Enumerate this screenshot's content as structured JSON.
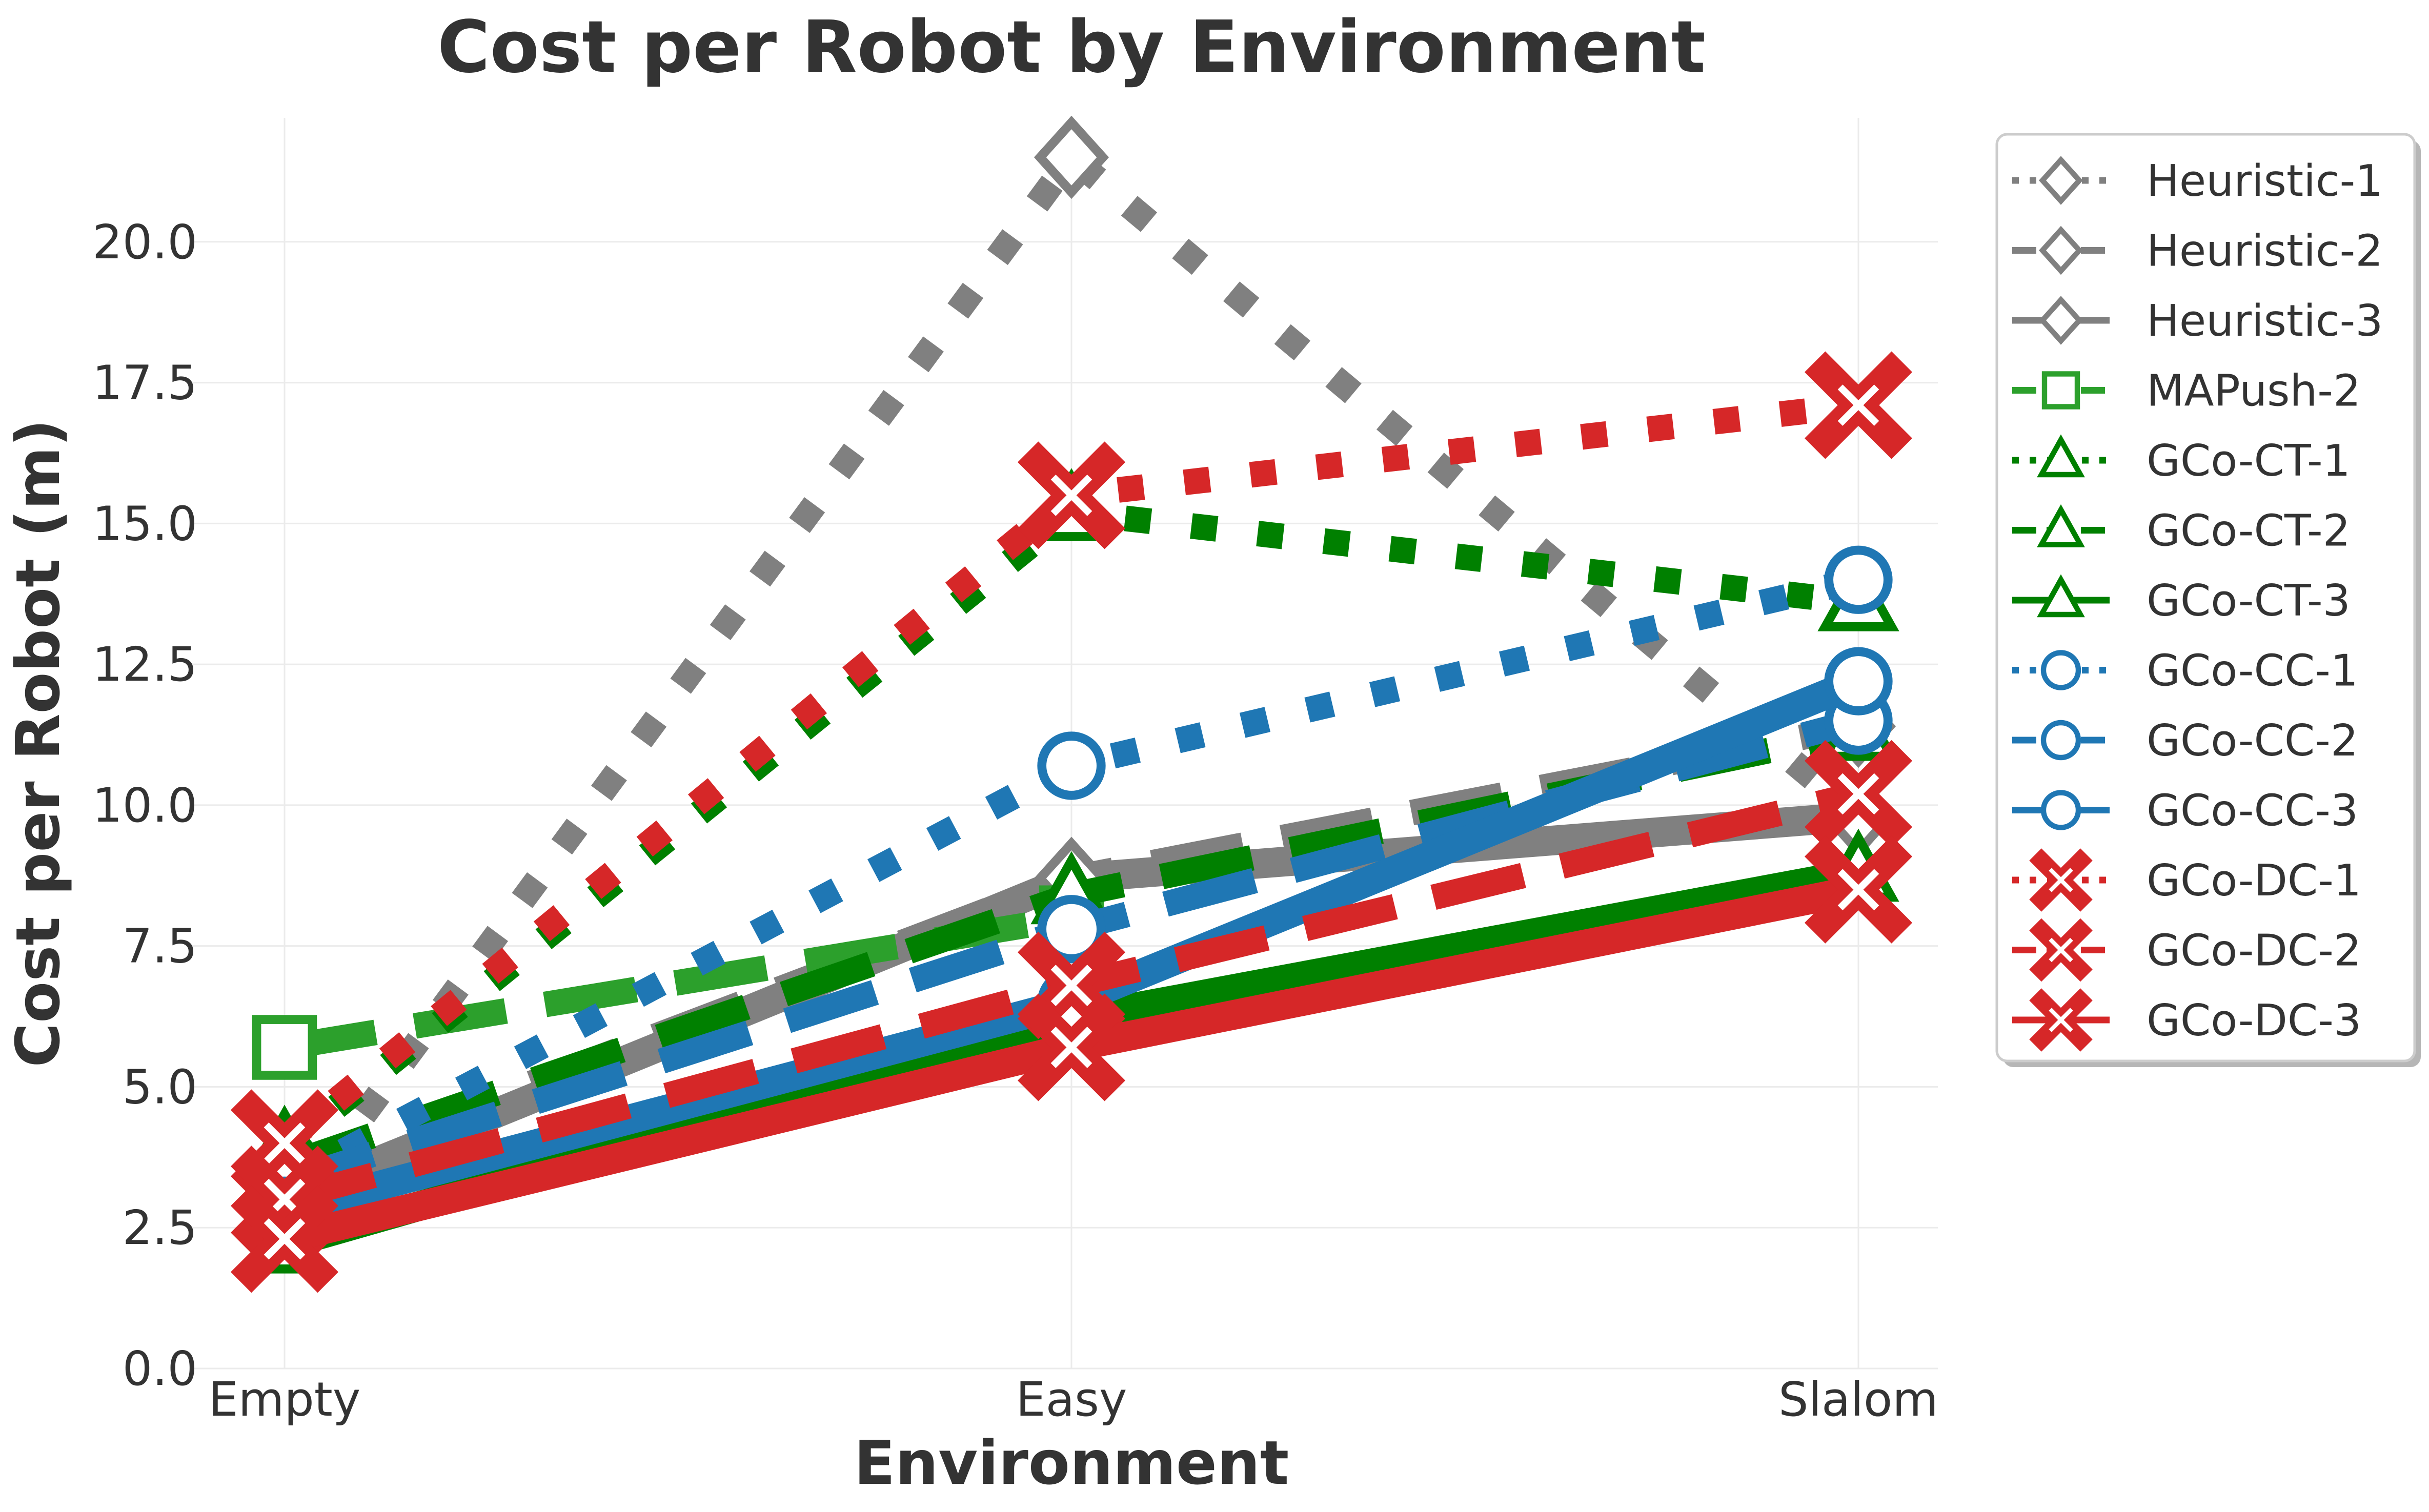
{
  "chart_data": {
    "type": "line",
    "title": "Cost per Robot by Environment",
    "xlabel": "Environment",
    "ylabel": "Cost per Robot (m)",
    "categories": [
      "Empty",
      "Easy",
      "Slalom"
    ],
    "ylim": [
      0,
      22.2
    ],
    "yticks": [
      "0.0",
      "2.5",
      "5.0",
      "7.5",
      "10.0",
      "12.5",
      "15.0",
      "17.5",
      "20.0"
    ],
    "grid": true,
    "legend_position": "outside-right",
    "series": [
      {
        "name": "Heuristic-1",
        "values": [
          2.6,
          21.5,
          9.8
        ],
        "color": "#808080",
        "dash": "dotted",
        "marker": "diamond"
      },
      {
        "name": "Heuristic-2",
        "values": [
          3.4,
          8.7,
          11.4
        ],
        "color": "#808080",
        "dash": "dashed",
        "marker": "diamond"
      },
      {
        "name": "Heuristic-3",
        "values": [
          3.0,
          8.7,
          9.8
        ],
        "color": "#808080",
        "dash": "solid",
        "marker": "diamond"
      },
      {
        "name": "MAPush-2",
        "values": [
          5.7,
          8.0,
          null
        ],
        "color": "#2ca02c",
        "dash": "dashed",
        "marker": "square"
      },
      {
        "name": "GCo-CT-1",
        "values": [
          3.9,
          15.2,
          13.6
        ],
        "color": "#008000",
        "dash": "dotted",
        "marker": "triangle"
      },
      {
        "name": "GCo-CT-2",
        "values": [
          3.6,
          8.4,
          11.3
        ],
        "color": "#008000",
        "dash": "dashed",
        "marker": "triangle"
      },
      {
        "name": "GCo-CT-3",
        "values": [
          2.2,
          6.2,
          8.8
        ],
        "color": "#008000",
        "dash": "solid",
        "marker": "triangle"
      },
      {
        "name": "GCo-CC-1",
        "values": [
          3.3,
          10.7,
          14.0
        ],
        "color": "#1f77b4",
        "dash": "dotted",
        "marker": "circle"
      },
      {
        "name": "GCo-CC-2",
        "values": [
          3.3,
          7.8,
          11.5
        ],
        "color": "#1f77b4",
        "dash": "dashed",
        "marker": "circle"
      },
      {
        "name": "GCo-CC-3",
        "values": [
          2.8,
          6.5,
          12.2
        ],
        "color": "#1f77b4",
        "dash": "solid",
        "marker": "circle"
      },
      {
        "name": "GCo-DC-1",
        "values": [
          4.0,
          15.5,
          17.1
        ],
        "color": "#d62728",
        "dash": "dotted",
        "marker": "xfilled"
      },
      {
        "name": "GCo-DC-2",
        "values": [
          3.0,
          6.8,
          10.2
        ],
        "color": "#d62728",
        "dash": "dashed",
        "marker": "xfilled"
      },
      {
        "name": "GCo-DC-3",
        "values": [
          2.3,
          5.7,
          8.5
        ],
        "color": "#d62728",
        "dash": "solid",
        "marker": "xfilled"
      }
    ]
  }
}
